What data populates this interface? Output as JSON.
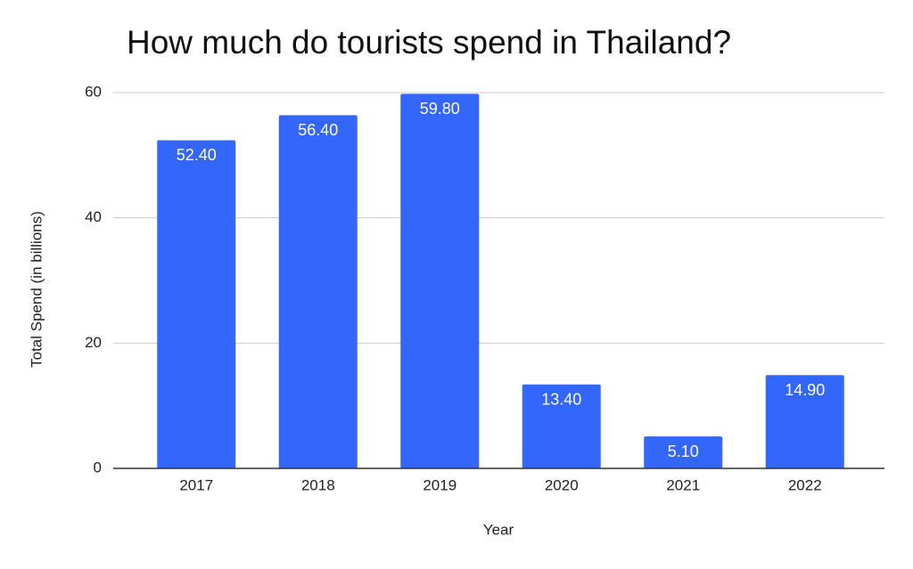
{
  "chart_data": {
    "type": "bar",
    "title": "How much do tourists spend in Thailand?",
    "x_label": "Year",
    "y_label": "Total Spend (in billions)",
    "categories": [
      "2017",
      "2018",
      "2019",
      "2020",
      "2021",
      "2022"
    ],
    "values": [
      52.4,
      56.4,
      59.8,
      13.4,
      5.1,
      14.9
    ],
    "value_labels": [
      "52.40",
      "56.40",
      "59.80",
      "13.40",
      "5.10",
      "14.90"
    ],
    "color": "#3366fa",
    "ylim": [
      0,
      60
    ],
    "yticks": [
      0,
      20,
      40,
      60
    ],
    "grid": true
  }
}
